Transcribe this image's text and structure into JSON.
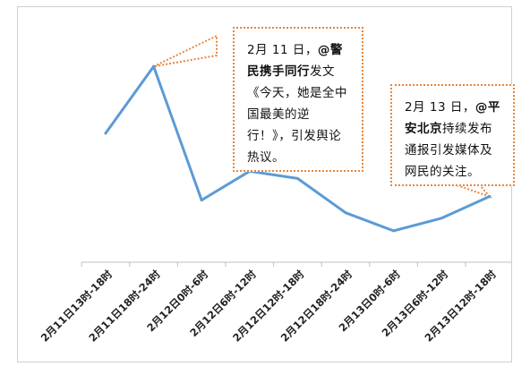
{
  "chart_data": {
    "type": "line",
    "categories": [
      "2月11日13时-18时",
      "2月11日18时-24时",
      "2月12日0时-6时",
      "2月12日6时-12时",
      "2月12日12时-18时",
      "2月12日18时-24时",
      "2月13日0时-6时",
      "2月13日6时-12时",
      "2月13日12时-18时"
    ],
    "series": [
      {
        "values": [
          40,
          77,
          3,
          19,
          15,
          -4,
          -14,
          -7,
          5
        ]
      }
    ],
    "ylim": [
      -20,
      90
    ],
    "grid": false,
    "legend": "none",
    "line_color": "#5b9bd5",
    "axis_color": "#bfbfbf",
    "callout_border_color": "#e9853a",
    "annotations": [
      {
        "target_index": 1,
        "date": "2月 11 日，",
        "handle": "@警民携手同行",
        "text": "发文《今天，她是全中国最美的逆行！》，引发舆论热议。"
      },
      {
        "target_index": 8,
        "date": "2月 13 日，",
        "handle": "@平安北京",
        "text": "持续发布通报引发媒体及网民的关注。"
      }
    ]
  }
}
